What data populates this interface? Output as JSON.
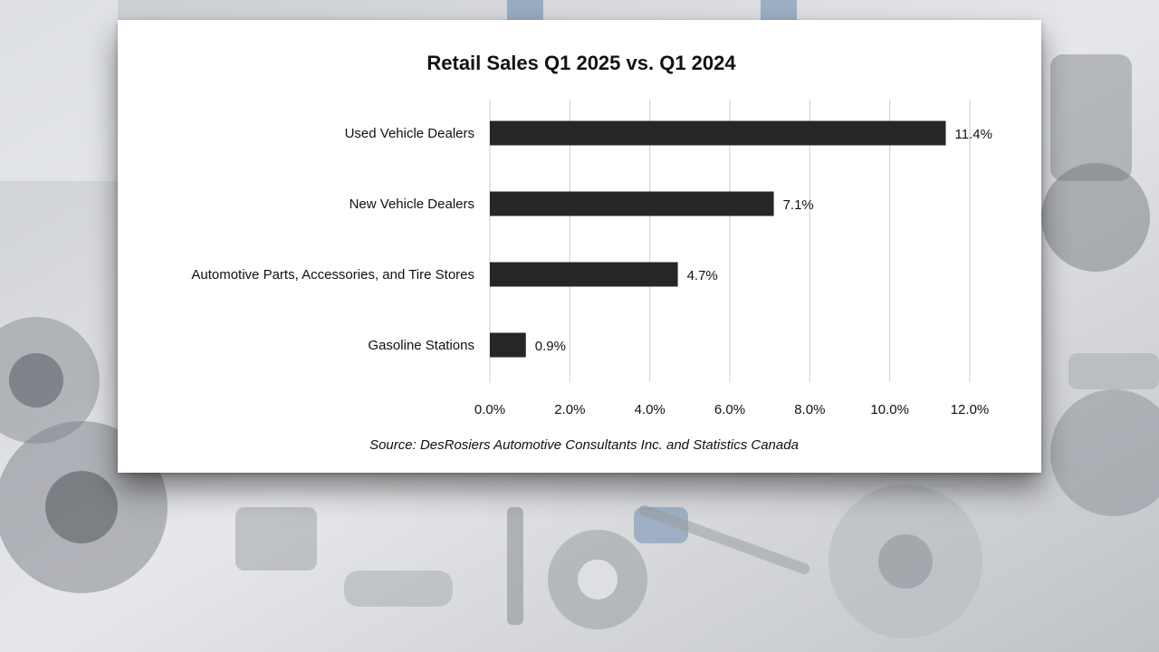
{
  "page": {
    "background_description": "auto-parts",
    "colors": {
      "bar": "#262626",
      "grid": "#d4d4d4",
      "text": "#111111",
      "card": "#ffffff"
    }
  },
  "chart_data": {
    "type": "bar",
    "orientation": "horizontal",
    "title": "Retail Sales Q1 2025 vs. Q1 2024",
    "categories": [
      "Used Vehicle Dealers",
      "New Vehicle Dealers",
      "Automotive Parts, Accessories, and Tire Stores",
      "Gasoline Stations"
    ],
    "values": [
      11.4,
      7.1,
      4.7,
      0.9
    ],
    "data_labels": [
      "11.4%",
      "7.1%",
      "4.7%",
      "0.9%"
    ],
    "xlim": [
      0,
      12
    ],
    "ticks": [
      0,
      2,
      4,
      6,
      8,
      10,
      12
    ],
    "tick_labels": [
      "0.0%",
      "2.0%",
      "4.0%",
      "6.0%",
      "8.0%",
      "10.0%",
      "12.0%"
    ],
    "grid": true,
    "legend": "none",
    "source": "Source:  DesRosiers Automotive Consultants Inc. and Statistics Canada"
  }
}
